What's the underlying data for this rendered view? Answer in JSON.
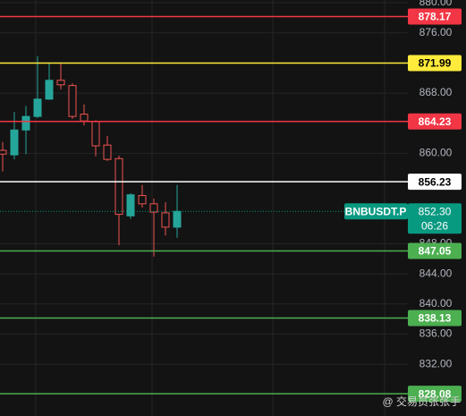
{
  "chart_data": {
    "type": "candlestick",
    "categories": [
      null,
      null,
      null,
      null,
      null,
      null,
      null,
      null,
      null,
      null,
      null,
      null,
      null,
      null,
      null,
      null
    ],
    "open": [
      860.4,
      859.8,
      863.1,
      864.9,
      867.2,
      869.7,
      869.0,
      865.2,
      864.2,
      861.1,
      859.3,
      851.7,
      854.4,
      853.3,
      852.1,
      850.2
    ],
    "high": [
      861.5,
      865.5,
      866.3,
      872.9,
      872.0,
      872.0,
      869.3,
      866.5,
      864.4,
      862.3,
      859.7,
      854.7,
      855.8,
      854.0,
      853.5,
      855.8
    ],
    "low": [
      857.6,
      859.2,
      859.9,
      864.7,
      867.1,
      868.5,
      864.6,
      863.7,
      859.6,
      859.0,
      847.8,
      851.3,
      852.8,
      846.3,
      849.1,
      848.8
    ],
    "close": [
      859.9,
      863.1,
      864.9,
      867.2,
      869.7,
      869.1,
      864.9,
      864.3,
      861.0,
      859.2,
      851.9,
      854.5,
      853.3,
      852.2,
      850.2,
      852.3
    ],
    "up_color": "#26a69a",
    "down_color": "#ef5350",
    "ylim": [
      825.13,
      880.36
    ],
    "yticks": [
      {
        "value": 880,
        "label": "880.00"
      },
      {
        "value": 876,
        "label": "876.00"
      },
      {
        "value": 868,
        "label": "868.00"
      },
      {
        "value": 860,
        "label": "860.00"
      },
      {
        "value": 848,
        "label": "848.00"
      },
      {
        "value": 844,
        "label": "844.00"
      },
      {
        "value": 840,
        "label": "840.00"
      },
      {
        "value": 836,
        "label": "836.00"
      },
      {
        "value": 832,
        "label": "832.00"
      }
    ],
    "grid": true,
    "levels": [
      {
        "value": 878.17,
        "color": "#f23645"
      },
      {
        "value": 871.99,
        "color": "#ffeb3b"
      },
      {
        "value": 864.23,
        "color": "#f23645"
      },
      {
        "value": 856.23,
        "color": "#ffffff"
      },
      {
        "value": 847.05,
        "color": "#4caf50"
      },
      {
        "value": 838.13,
        "color": "#4caf50"
      },
      {
        "value": 828.08,
        "color": "#4caf50"
      }
    ],
    "last": {
      "symbol": "BNBUSDT.P",
      "price": {
        "value": 852.3,
        "label": "852.30"
      },
      "countdown": "06:26",
      "color": "#089981"
    },
    "watermark": "@ 交易员张张手"
  }
}
